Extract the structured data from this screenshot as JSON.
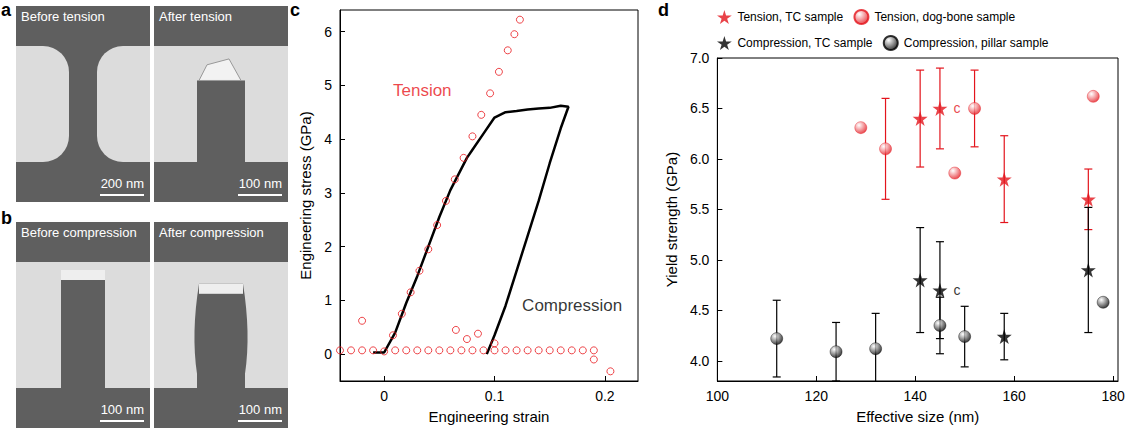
{
  "image_panels": [
    {
      "letter": "a",
      "frames": [
        {
          "caption": "Before tension",
          "scale_bar": "200 nm"
        },
        {
          "caption": "After tension",
          "scale_bar": "100 nm"
        }
      ]
    },
    {
      "letter": "b",
      "frames": [
        {
          "caption": "Before compression",
          "scale_bar": "100 nm"
        },
        {
          "caption": "After compression",
          "scale_bar": "100 nm"
        }
      ]
    }
  ],
  "chart_data": [
    {
      "letter": "c",
      "type": "line",
      "xlabel": "Engineering strain",
      "ylabel": "Engineering stress (GPa)",
      "xlim": [
        -0.04,
        0.23
      ],
      "xticks": [
        0,
        0.1,
        0.2
      ],
      "ylim": [
        -0.5,
        6.4
      ],
      "yticks": [
        0,
        1,
        2,
        3,
        4,
        5,
        6
      ],
      "grid": false,
      "series": [
        {
          "type": "scatter",
          "marker": "circle_open",
          "color": "#e8161b",
          "x": [
            0,
            0.008,
            0.016,
            0.024,
            0.032,
            0.04,
            0.048,
            0.056,
            0.064,
            0.072,
            0.08,
            0.088,
            0.096,
            0.104,
            0.112,
            0.118,
            0.123,
            -0.04,
            -0.03,
            -0.02,
            -0.01,
            0.01,
            0.02,
            0.03,
            0.04,
            0.05,
            0.06,
            0.07,
            0.08,
            0.09,
            0.1,
            0.11,
            0.12,
            0.13,
            0.14,
            0.15,
            0.16,
            0.17,
            0.18,
            0.19,
            -0.02,
            0.065,
            0.075,
            0.085,
            0.1,
            0.19,
            0.205
          ],
          "values": [
            0.05,
            0.35,
            0.75,
            1.15,
            1.55,
            1.95,
            2.4,
            2.85,
            3.25,
            3.65,
            4.05,
            4.45,
            4.85,
            5.25,
            5.65,
            5.95,
            6.22,
            0.07,
            0.07,
            0.07,
            0.07,
            0.07,
            0.07,
            0.07,
            0.07,
            0.07,
            0.07,
            0.07,
            0.07,
            0.07,
            0.07,
            0.07,
            0.07,
            0.07,
            0.07,
            0.07,
            0.07,
            0.07,
            0.07,
            0.07,
            0.62,
            0.45,
            0.28,
            0.38,
            0.2,
            -0.1,
            -0.32
          ]
        },
        {
          "type": "line",
          "marker": "none",
          "color": "#000000",
          "x": [
            -0.01,
            0,
            0.01,
            0.02,
            0.03,
            0.04,
            0.05,
            0.06,
            0.07,
            0.075,
            0.08,
            0.09,
            0.1,
            0.11,
            0.12,
            0.13,
            0.14,
            0.15,
            0.16,
            0.167,
            0.16,
            0.15,
            0.14,
            0.13,
            0.12,
            0.11,
            0.1,
            0.093
          ],
          "values": [
            0.03,
            0.03,
            0.4,
            0.95,
            1.45,
            2.0,
            2.55,
            3.05,
            3.45,
            3.65,
            3.8,
            4.1,
            4.4,
            4.5,
            4.52,
            4.55,
            4.57,
            4.58,
            4.62,
            4.6,
            4.2,
            3.55,
            2.85,
            2.2,
            1.55,
            0.9,
            0.35,
            0.0
          ]
        }
      ],
      "annotations": [
        {
          "text": "Tension",
          "x": 0.008,
          "y": 4.9,
          "color": "#e8161b"
        },
        {
          "text": "Compression",
          "x": 0.125,
          "y": 0.9,
          "color": "#000000"
        }
      ]
    },
    {
      "letter": "d",
      "type": "scatter",
      "xlabel": "Effective size (nm)",
      "ylabel": "Yield strength (GPa)",
      "xlim": [
        100,
        181
      ],
      "xticks": [
        100,
        120,
        140,
        160,
        180
      ],
      "ylim": [
        3.8,
        7.0
      ],
      "yticks": [
        {
          "value": 4,
          "label": "4.0"
        },
        {
          "value": 4.5,
          "label": "4.5"
        },
        {
          "value": 5,
          "label": "5.0"
        },
        {
          "value": 5.5,
          "label": "5.5"
        },
        {
          "value": 6,
          "label": "6.0"
        },
        {
          "value": 6.5,
          "label": "6.5"
        },
        {
          "value": 7,
          "label": "7.0"
        }
      ],
      "grid": false,
      "legend": "top",
      "series": [
        {
          "name": "Tension, TC sample",
          "marker": "star",
          "color": "#e3141c",
          "x": [
            141,
            145,
            158,
            175
          ],
          "values": [
            6.4,
            6.5,
            5.8,
            5.6
          ],
          "errors": [
            0.48,
            0.4,
            0.43,
            0.3
          ],
          "point_labels": [
            null,
            "c",
            null,
            null
          ]
        },
        {
          "name": "Tension, dog-bone sample",
          "marker": "sphere",
          "color": "#e3141c",
          "x": [
            129,
            134,
            148,
            152,
            176
          ],
          "values": [
            6.31,
            6.1,
            5.86,
            6.5,
            6.62
          ],
          "errors": [
            null,
            0.5,
            null,
            0.38,
            null
          ],
          "point_labels": [
            null,
            null,
            null,
            null,
            null
          ]
        },
        {
          "name": "Compression, TC sample",
          "marker": "star",
          "color": "#000000",
          "x": [
            141,
            145,
            158,
            175
          ],
          "values": [
            4.8,
            4.7,
            4.24,
            4.9
          ],
          "errors": [
            0.52,
            0.48,
            0.23,
            0.62
          ],
          "point_labels": [
            null,
            "c",
            null,
            null
          ]
        },
        {
          "name": "Compression, pillar sample",
          "marker": "sphere",
          "color": "#000000",
          "x": [
            112,
            124,
            132,
            145,
            150,
            178
          ],
          "values": [
            4.22,
            4.09,
            4.12,
            4.35,
            4.24,
            4.58
          ],
          "errors": [
            0.38,
            0.29,
            0.35,
            0.28,
            0.3,
            null
          ],
          "point_labels": [
            null,
            null,
            null,
            null,
            null,
            null
          ]
        }
      ]
    }
  ]
}
